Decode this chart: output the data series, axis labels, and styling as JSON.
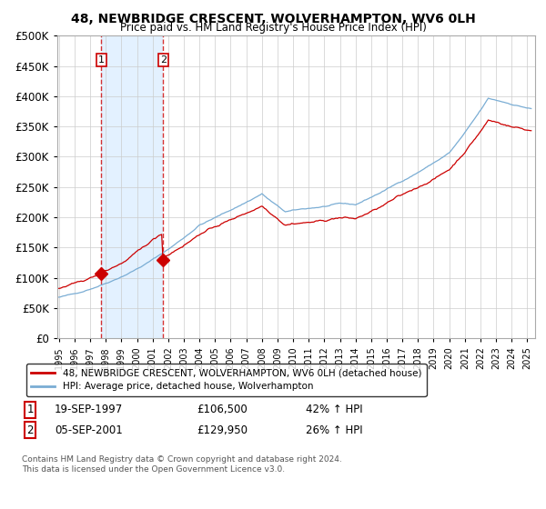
{
  "title_line1": "48, NEWBRIDGE CRESCENT, WOLVERHAMPTON, WV6 0LH",
  "title_line2": "Price paid vs. HM Land Registry's House Price Index (HPI)",
  "ylim": [
    0,
    500000
  ],
  "yticks": [
    0,
    50000,
    100000,
    150000,
    200000,
    250000,
    300000,
    350000,
    400000,
    450000,
    500000
  ],
  "xlim_start": 1994.9,
  "xlim_end": 2025.5,
  "sale1_x": 1997.72,
  "sale1_y": 106500,
  "sale2_x": 2001.68,
  "sale2_y": 129950,
  "sale1_date": "19-SEP-1997",
  "sale1_price": "£106,500",
  "sale1_hpi": "42% ↑ HPI",
  "sale2_date": "05-SEP-2001",
  "sale2_price": "£129,950",
  "sale2_hpi": "26% ↑ HPI",
  "legend_line1": "48, NEWBRIDGE CRESCENT, WOLVERHAMPTON, WV6 0LH (detached house)",
  "legend_line2": "HPI: Average price, detached house, Wolverhampton",
  "footer": "Contains HM Land Registry data © Crown copyright and database right 2024.\nThis data is licensed under the Open Government Licence v3.0.",
  "line_color_red": "#cc0000",
  "line_color_blue": "#7aadd4",
  "shade_color": "#ddeeff",
  "background_color": "#ffffff",
  "grid_color": "#cccccc"
}
